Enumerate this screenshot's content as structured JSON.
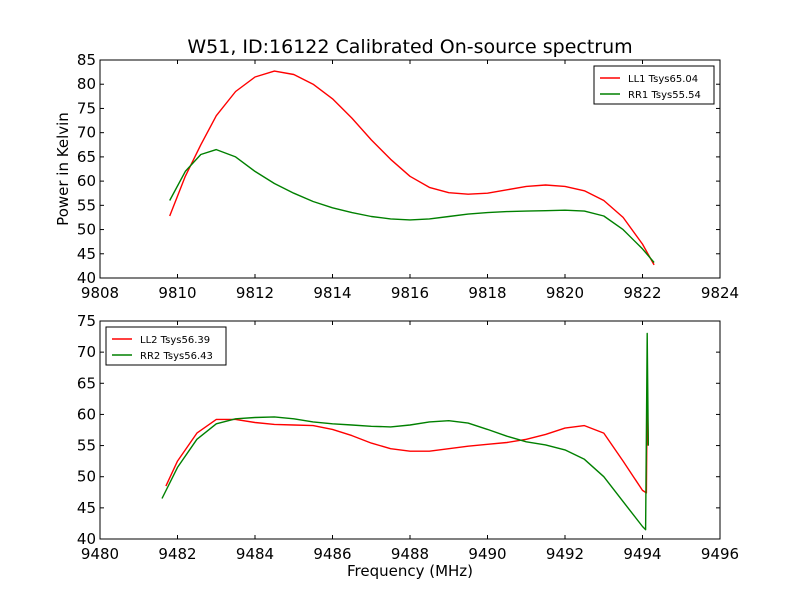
{
  "figure": {
    "title": "W51, ID:16122 Calibrated On-source spectrum"
  },
  "chart_data": [
    {
      "type": "line",
      "title": "W51, ID:16122 Calibrated On-source spectrum",
      "xlabel": "",
      "ylabel": "Power in Kelvin",
      "xlim": [
        9808,
        9824
      ],
      "ylim": [
        40,
        85
      ],
      "xticks": [
        9808,
        9810,
        9812,
        9814,
        9816,
        9818,
        9820,
        9822,
        9824
      ],
      "yticks": [
        40,
        45,
        50,
        55,
        60,
        65,
        70,
        75,
        80,
        85
      ],
      "grid": false,
      "legend_position": "top-right",
      "series": [
        {
          "name": "LL1 Tsys65.04",
          "color": "#ff0000",
          "x": [
            9809.8,
            9810.2,
            9810.6,
            9811.0,
            9811.5,
            9812.0,
            9812.5,
            9813.0,
            9813.5,
            9814.0,
            9814.5,
            9815.0,
            9815.5,
            9816.0,
            9816.5,
            9817.0,
            9817.5,
            9818.0,
            9818.5,
            9819.0,
            9819.5,
            9820.0,
            9820.5,
            9821.0,
            9821.5,
            9822.0,
            9822.3
          ],
          "y": [
            52.8,
            61.0,
            67.5,
            73.5,
            78.5,
            81.5,
            82.7,
            82.0,
            80.0,
            77.0,
            73.0,
            68.5,
            64.5,
            61.0,
            58.7,
            57.6,
            57.3,
            57.5,
            58.2,
            58.9,
            59.2,
            58.9,
            58.0,
            56.0,
            52.5,
            47.0,
            42.7
          ]
        },
        {
          "name": "RR1 Tsys55.54",
          "color": "#008000",
          "x": [
            9809.8,
            9810.2,
            9810.6,
            9811.0,
            9811.5,
            9812.0,
            9812.5,
            9813.0,
            9813.5,
            9814.0,
            9814.5,
            9815.0,
            9815.5,
            9816.0,
            9816.5,
            9817.0,
            9817.5,
            9818.0,
            9818.5,
            9819.0,
            9819.5,
            9820.0,
            9820.5,
            9821.0,
            9821.5,
            9822.0,
            9822.3
          ],
          "y": [
            56.0,
            62.0,
            65.5,
            66.5,
            65.0,
            62.0,
            59.5,
            57.5,
            55.8,
            54.5,
            53.5,
            52.7,
            52.2,
            52.0,
            52.2,
            52.7,
            53.2,
            53.5,
            53.7,
            53.8,
            53.9,
            54.0,
            53.8,
            52.8,
            50.0,
            46.0,
            43.2
          ]
        }
      ]
    },
    {
      "type": "line",
      "title": "",
      "xlabel": "Frequency (MHz)",
      "ylabel": "",
      "xlim": [
        9480,
        9496
      ],
      "ylim": [
        40,
        75
      ],
      "xticks": [
        9480,
        9482,
        9484,
        9486,
        9488,
        9490,
        9492,
        9494,
        9496
      ],
      "yticks": [
        40,
        45,
        50,
        55,
        60,
        65,
        70,
        75
      ],
      "grid": false,
      "legend_position": "top-left",
      "series": [
        {
          "name": "LL2 Tsys56.39",
          "color": "#ff0000",
          "x": [
            9481.7,
            9482.0,
            9482.5,
            9483.0,
            9483.5,
            9484.0,
            9484.5,
            9485.0,
            9485.5,
            9486.0,
            9486.5,
            9487.0,
            9487.5,
            9488.0,
            9488.5,
            9489.0,
            9489.5,
            9490.0,
            9490.5,
            9491.0,
            9491.5,
            9492.0,
            9492.5,
            9493.0,
            9493.5,
            9494.0,
            9494.1,
            9494.12,
            9494.15
          ],
          "y": [
            48.5,
            52.5,
            57.0,
            59.2,
            59.2,
            58.7,
            58.4,
            58.3,
            58.2,
            57.6,
            56.6,
            55.4,
            54.5,
            54.1,
            54.1,
            54.5,
            54.9,
            55.2,
            55.5,
            56.0,
            56.8,
            57.8,
            58.2,
            57.0,
            52.5,
            47.8,
            47.4,
            63.5,
            55.0
          ]
        },
        {
          "name": "RR2 Tsys56.43",
          "color": "#008000",
          "x": [
            9481.6,
            9482.0,
            9482.5,
            9483.0,
            9483.5,
            9484.0,
            9484.5,
            9485.0,
            9485.5,
            9486.0,
            9486.5,
            9487.0,
            9487.5,
            9488.0,
            9488.5,
            9489.0,
            9489.5,
            9490.0,
            9490.5,
            9491.0,
            9491.5,
            9492.0,
            9492.5,
            9493.0,
            9493.5,
            9494.0,
            9494.08,
            9494.12,
            9494.15
          ],
          "y": [
            46.5,
            51.5,
            56.0,
            58.5,
            59.3,
            59.5,
            59.6,
            59.3,
            58.8,
            58.5,
            58.3,
            58.1,
            58.0,
            58.3,
            58.8,
            59.0,
            58.6,
            57.6,
            56.5,
            55.6,
            55.1,
            54.3,
            52.8,
            50.0,
            46.0,
            42.0,
            41.5,
            73.0,
            55.0
          ]
        }
      ]
    }
  ]
}
